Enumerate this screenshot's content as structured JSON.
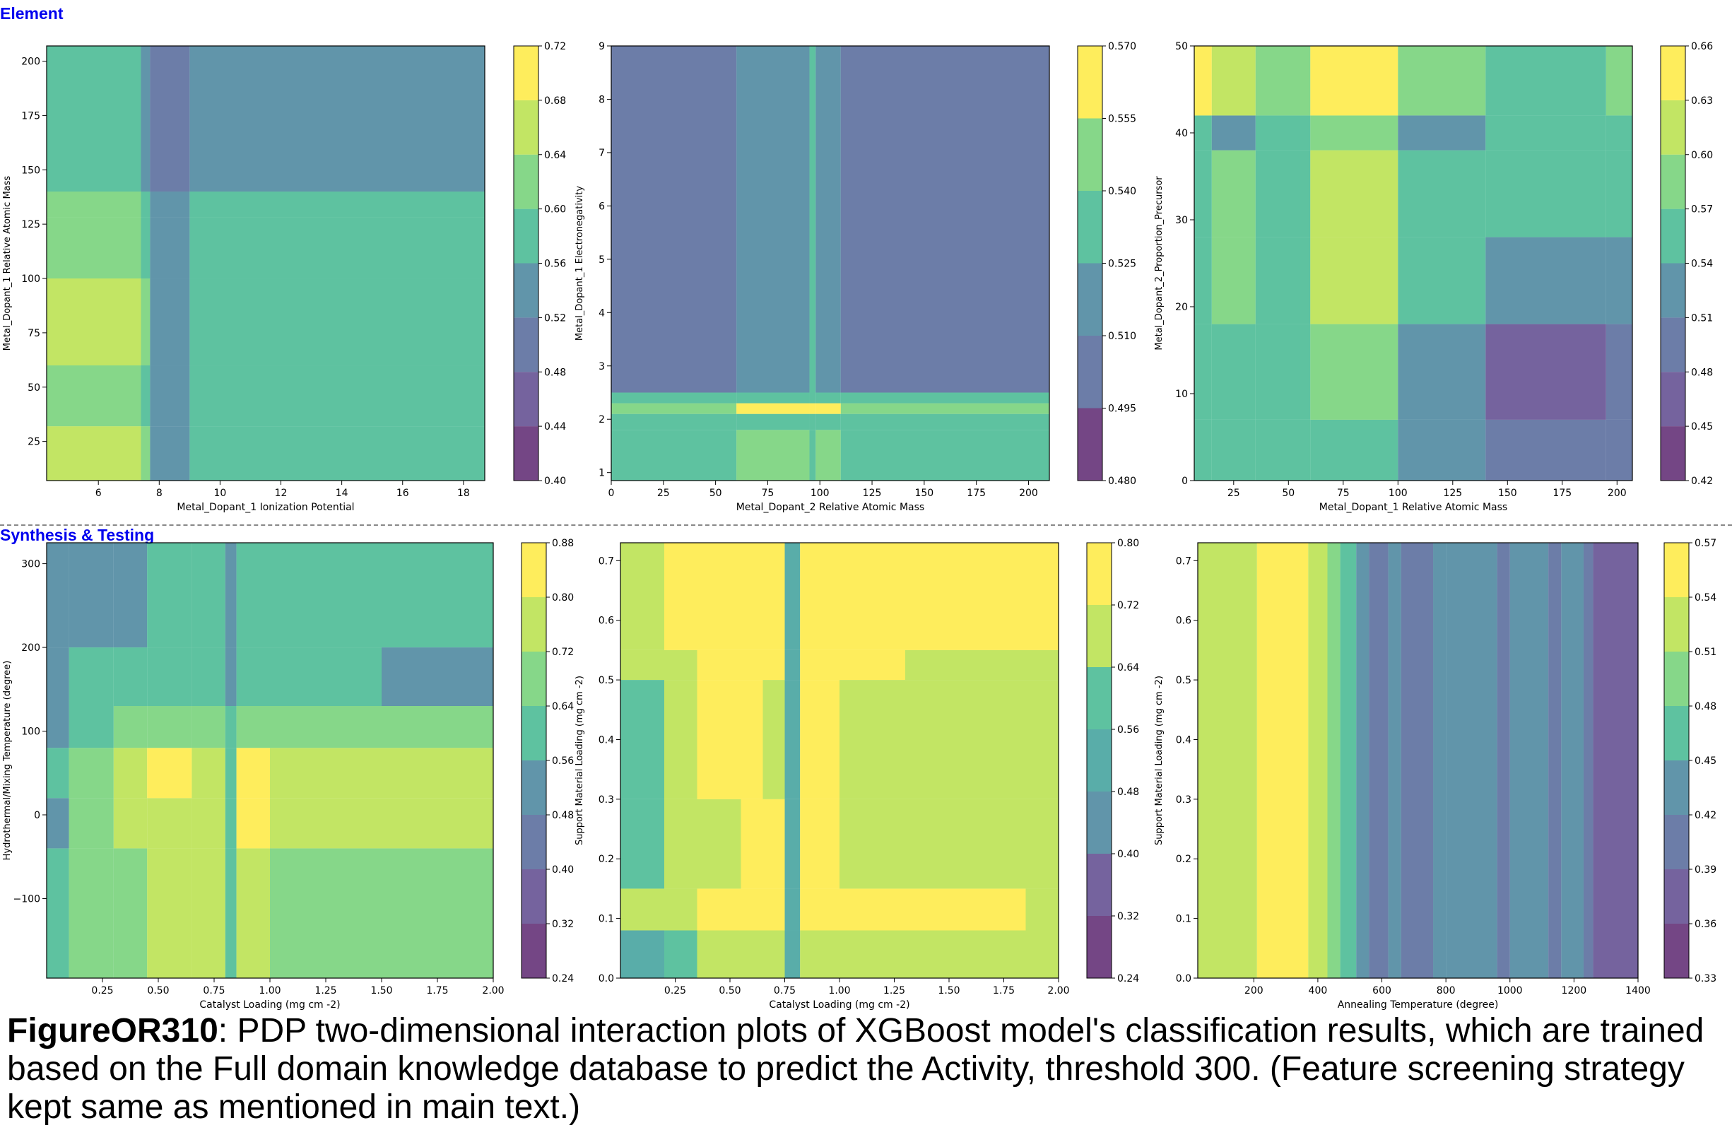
{
  "sections": {
    "element_label": "Element",
    "synthesis_label": "Synthesis & Testing"
  },
  "caption": {
    "figure_id": "FigureOR310",
    "text": ": PDP two-dimensional interaction plots of XGBoost model's classification results, which are trained based on the Full domain knowledge database to predict the Activity, threshold 300. (Feature screening strategy kept same as mentioned in main text.)"
  },
  "palette": [
    "#46085c",
    "#472f7d",
    "#3b528b",
    "#2c728e",
    "#21918c",
    "#28ae80",
    "#5ec962",
    "#addc30",
    "#fde725"
  ],
  "chart_data": [
    {
      "type": "heatmap",
      "xlabel": "Metal_Dopant_1 Ionization Potential",
      "ylabel": "Metal_Dopant_1 Relative Atomic Mass",
      "xlim": [
        4.3,
        18.7
      ],
      "ylim": [
        7,
        207
      ],
      "xticks": [
        6,
        8,
        10,
        12,
        14,
        16,
        18
      ],
      "xtick_labels": [
        "6",
        "8",
        "10",
        "12",
        "14",
        "16",
        "18"
      ],
      "yticks": [
        25,
        50,
        75,
        100,
        125,
        150,
        175,
        200
      ],
      "ytick_labels": [
        "25",
        "50",
        "75",
        "100",
        "125",
        "150",
        "175",
        "200"
      ],
      "colorbar": {
        "levels": [
          "0.40",
          "0.44",
          "0.48",
          "0.52",
          "0.56",
          "0.60",
          "0.64",
          "0.68",
          "0.72"
        ]
      },
      "x_edges": [
        4.3,
        7.4,
        7.7,
        9.0,
        18.7
      ],
      "y_edges": [
        7,
        32,
        60,
        100,
        128,
        140,
        207
      ],
      "z_levels": [
        [
          6,
          5,
          3,
          4
        ],
        [
          5,
          4,
          3,
          4
        ],
        [
          6,
          5,
          3,
          4
        ],
        [
          5,
          4,
          3,
          4
        ],
        [
          5,
          4,
          3,
          4
        ],
        [
          4,
          3,
          2,
          3
        ]
      ]
    },
    {
      "type": "heatmap",
      "xlabel": "Metal_Dopant_2 Relative Atomic Mass",
      "ylabel": "Metal_Dopant_1 Electronegativity",
      "xlim": [
        0,
        210
      ],
      "ylim": [
        0.85,
        9
      ],
      "xticks": [
        0,
        25,
        50,
        75,
        100,
        125,
        150,
        175,
        200
      ],
      "xtick_labels": [
        "0",
        "25",
        "50",
        "75",
        "100",
        "125",
        "150",
        "175",
        "200"
      ],
      "yticks": [
        1,
        2,
        3,
        4,
        5,
        6,
        7,
        8,
        9
      ],
      "ytick_labels": [
        "1",
        "2",
        "3",
        "4",
        "5",
        "6",
        "7",
        "8",
        "9"
      ],
      "colorbar": {
        "levels": [
          "0.480",
          "0.495",
          "0.510",
          "0.525",
          "0.540",
          "0.555",
          "0.570"
        ]
      },
      "x_edges": [
        0,
        60,
        95,
        98,
        110,
        210
      ],
      "y_edges": [
        0.85,
        1.8,
        2.1,
        2.3,
        2.5,
        9
      ],
      "z_levels": [
        [
          3,
          4,
          3,
          4,
          3
        ],
        [
          3,
          3,
          3,
          3,
          3
        ],
        [
          4,
          5,
          6,
          5,
          4
        ],
        [
          3,
          3,
          3,
          3,
          3
        ],
        [
          1,
          2,
          3,
          2,
          1
        ]
      ]
    },
    {
      "type": "heatmap",
      "xlabel": "Metal_Dopant_1 Relative Atomic Mass",
      "ylabel": "Metal_Dopant_2_Proportion_Precursor",
      "xlim": [
        7,
        207
      ],
      "ylim": [
        0,
        50
      ],
      "xticks": [
        25,
        50,
        75,
        100,
        125,
        150,
        175,
        200
      ],
      "xtick_labels": [
        "25",
        "50",
        "75",
        "100",
        "125",
        "150",
        "175",
        "200"
      ],
      "yticks": [
        0,
        10,
        20,
        30,
        40,
        50
      ],
      "ytick_labels": [
        "0",
        "10",
        "20",
        "30",
        "40",
        "50"
      ],
      "colorbar": {
        "levels": [
          "0.42",
          "0.45",
          "0.48",
          "0.51",
          "0.54",
          "0.57",
          "0.60",
          "0.63",
          "0.66"
        ]
      },
      "x_edges": [
        7,
        15,
        35,
        60,
        100,
        140,
        195,
        207
      ],
      "y_edges": [
        0,
        7,
        18,
        28,
        38,
        42,
        50
      ],
      "z_levels": [
        [
          4,
          4,
          4,
          4,
          3,
          2,
          2
        ],
        [
          4,
          4,
          4,
          5,
          3,
          1,
          2
        ],
        [
          4,
          5,
          4,
          6,
          4,
          3,
          3
        ],
        [
          4,
          5,
          4,
          6,
          4,
          4,
          4
        ],
        [
          4,
          3,
          4,
          5,
          3,
          4,
          4
        ],
        [
          7,
          6,
          5,
          7,
          5,
          4,
          5
        ]
      ]
    },
    {
      "type": "heatmap",
      "xlabel": "Catalyst Loading (mg cm -2)",
      "ylabel": "Hydrothermal/Mixing Temperature (degree)",
      "xlim": [
        0,
        2
      ],
      "ylim": [
        -195,
        325
      ],
      "xticks": [
        0.25,
        0.5,
        0.75,
        1.0,
        1.25,
        1.5,
        1.75,
        2.0
      ],
      "xtick_labels": [
        "0.25",
        "0.50",
        "0.75",
        "1.00",
        "1.25",
        "1.50",
        "1.75",
        "2.00"
      ],
      "yticks": [
        -100,
        0,
        100,
        200,
        300
      ],
      "ytick_labels": [
        "−100",
        "0",
        "100",
        "200",
        "300"
      ],
      "colorbar": {
        "levels": [
          "0.24",
          "0.32",
          "0.40",
          "0.48",
          "0.56",
          "0.64",
          "0.72",
          "0.80",
          "0.88"
        ]
      },
      "x_edges": [
        0,
        0.1,
        0.3,
        0.45,
        0.65,
        0.8,
        0.85,
        1.0,
        1.5,
        2.0
      ],
      "y_edges": [
        -195,
        -40,
        20,
        80,
        130,
        200,
        325
      ],
      "z_levels": [
        [
          4,
          5,
          5,
          6,
          6,
          4,
          6,
          5,
          5
        ],
        [
          3,
          5,
          6,
          6,
          6,
          4,
          7,
          6,
          6
        ],
        [
          4,
          5,
          6,
          7,
          6,
          4,
          7,
          6,
          6
        ],
        [
          3,
          4,
          5,
          5,
          5,
          4,
          5,
          5,
          5
        ],
        [
          3,
          4,
          4,
          4,
          4,
          3,
          4,
          4,
          3
        ],
        [
          3,
          3,
          3,
          4,
          4,
          3,
          4,
          4,
          4
        ]
      ]
    },
    {
      "type": "heatmap",
      "xlabel": "Catalyst Loading (mg cm -2)",
      "ylabel": "Support Material Loading (mg cm -2)",
      "xlim": [
        0,
        2
      ],
      "ylim": [
        0,
        0.73
      ],
      "xticks": [
        0.25,
        0.5,
        0.75,
        1.0,
        1.25,
        1.5,
        1.75,
        2.0
      ],
      "xtick_labels": [
        "0.25",
        "0.50",
        "0.75",
        "1.00",
        "1.25",
        "1.50",
        "1.75",
        "2.00"
      ],
      "yticks": [
        0,
        0.1,
        0.2,
        0.3,
        0.4,
        0.5,
        0.6,
        0.7
      ],
      "ytick_labels": [
        "0.0",
        "0.1",
        "0.2",
        "0.3",
        "0.4",
        "0.5",
        "0.6",
        "0.7"
      ],
      "colorbar": {
        "levels": [
          "0.24",
          "0.32",
          "0.40",
          "0.48",
          "0.56",
          "0.64",
          "0.72",
          "0.80"
        ]
      },
      "x_edges": [
        0,
        0.2,
        0.35,
        0.55,
        0.65,
        0.75,
        0.82,
        0.85,
        1.0,
        1.3,
        1.85,
        2.0
      ],
      "y_edges": [
        0,
        0.08,
        0.15,
        0.3,
        0.5,
        0.55,
        0.73
      ],
      "z_levels": [
        [
          3,
          4,
          5,
          5,
          5,
          3,
          5,
          5,
          5,
          5,
          5
        ],
        [
          5,
          5,
          6,
          7,
          6,
          3,
          7,
          6,
          6,
          6,
          5
        ],
        [
          4,
          5,
          5,
          6,
          6,
          3,
          6,
          6,
          5,
          5,
          5
        ],
        [
          4,
          5,
          6,
          6,
          5,
          3,
          7,
          6,
          5,
          5,
          5
        ],
        [
          5,
          5,
          6,
          7,
          6,
          3,
          6,
          6,
          6,
          5,
          5
        ],
        [
          5,
          6,
          6,
          6,
          6,
          3,
          6,
          6,
          6,
          6,
          6
        ]
      ]
    },
    {
      "type": "heatmap",
      "xlabel": "Annealing Temperature (degree)",
      "ylabel": "Support Material Loading (mg cm -2)",
      "xlim": [
        25,
        1400
      ],
      "ylim": [
        0,
        0.73
      ],
      "xticks": [
        200,
        400,
        600,
        800,
        1000,
        1200,
        1400
      ],
      "xtick_labels": [
        "200",
        "400",
        "600",
        "800",
        "1000",
        "1200",
        "1400"
      ],
      "yticks": [
        0,
        0.1,
        0.2,
        0.3,
        0.4,
        0.5,
        0.6,
        0.7
      ],
      "ytick_labels": [
        "0.0",
        "0.1",
        "0.2",
        "0.3",
        "0.4",
        "0.5",
        "0.6",
        "0.7"
      ],
      "colorbar": {
        "levels": [
          "0.33",
          "0.36",
          "0.39",
          "0.42",
          "0.45",
          "0.48",
          "0.51",
          "0.54",
          "0.57"
        ]
      },
      "x_edges": [
        25,
        210,
        370,
        430,
        470,
        520,
        560,
        620,
        660,
        760,
        800,
        960,
        1000,
        1120,
        1160,
        1230,
        1260,
        1400
      ],
      "y_edges": [
        0,
        0.73
      ],
      "z_levels": [
        [
          6,
          7,
          6,
          5,
          4,
          3,
          2,
          3,
          2,
          3,
          3,
          2,
          3,
          2,
          3,
          2,
          1
        ]
      ]
    }
  ]
}
